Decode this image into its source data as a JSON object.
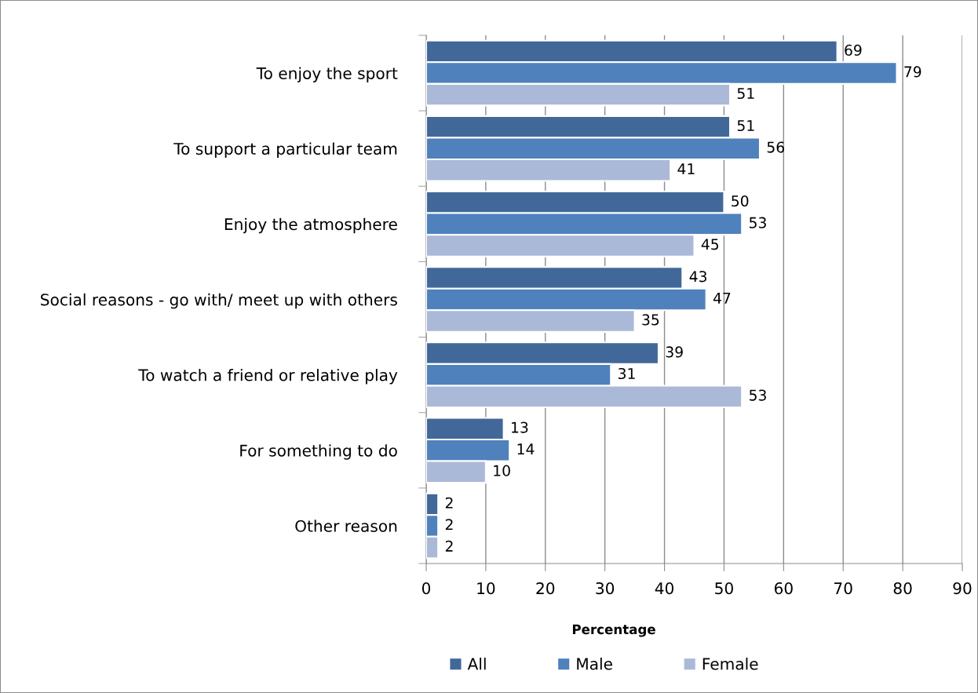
{
  "chart_data": {
    "type": "bar",
    "orientation": "horizontal",
    "categories": [
      "To enjoy the sport",
      "To support a particular team",
      "Enjoy the atmosphere",
      "Social reasons - go with/ meet up with others",
      "To watch a friend or relative play",
      "For something to do",
      "Other reason"
    ],
    "series": [
      {
        "name": "All",
        "color": "#416899",
        "values": [
          69,
          51,
          50,
          43,
          39,
          13,
          2
        ]
      },
      {
        "name": "Male",
        "color": "#4f81bd",
        "values": [
          79,
          56,
          53,
          47,
          31,
          14,
          2
        ]
      },
      {
        "name": "Female",
        "color": "#aab9d7",
        "values": [
          51,
          41,
          45,
          35,
          53,
          10,
          2
        ]
      }
    ],
    "xlabel": "Percentage",
    "xlim": [
      0,
      90
    ],
    "xticks": [
      0,
      10,
      20,
      30,
      40,
      50,
      60,
      70,
      80,
      90
    ],
    "grid": "x",
    "legend": "bottom",
    "data_labels": true
  }
}
